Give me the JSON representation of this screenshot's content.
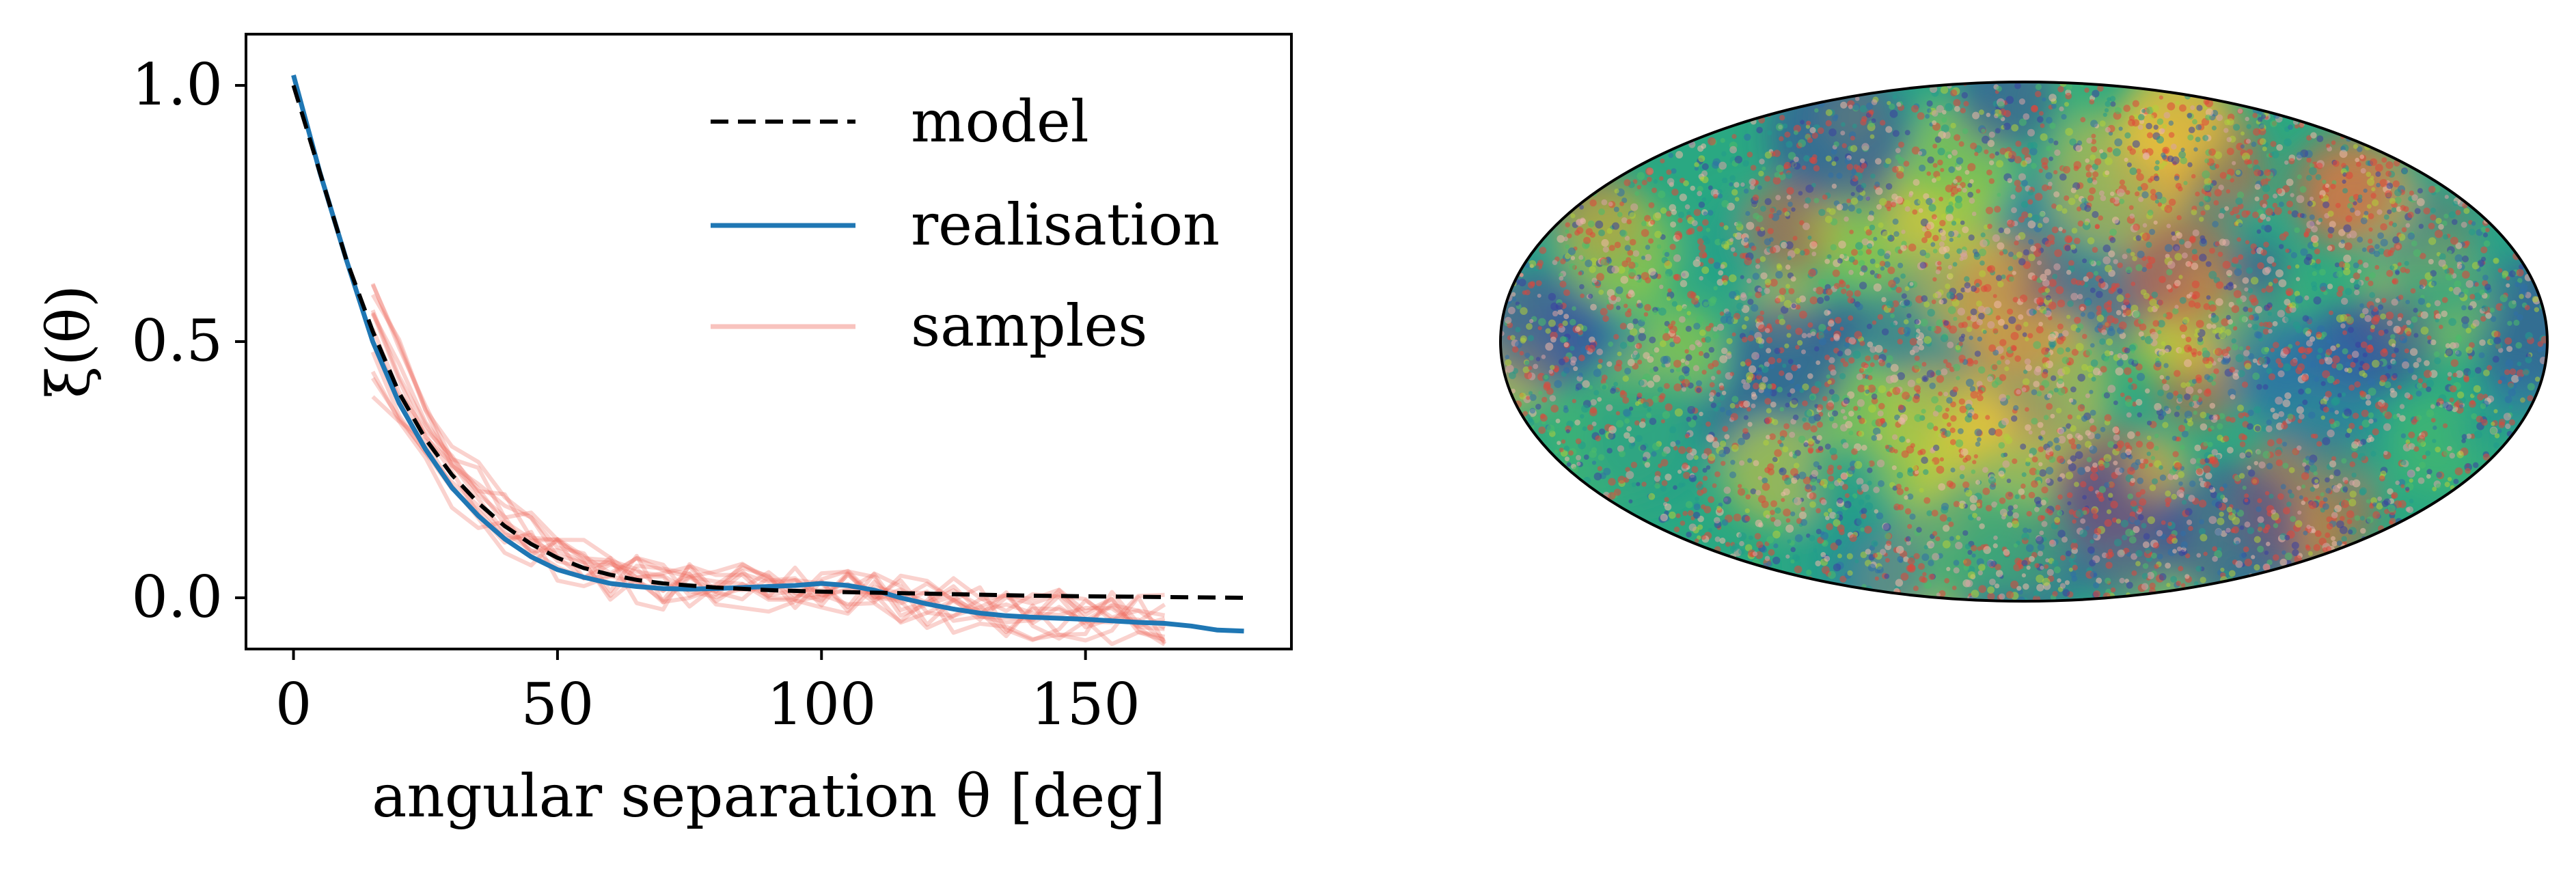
{
  "chart_data": [
    {
      "type": "line",
      "xlabel": "angular separation θ [deg]",
      "ylabel": "ξ(θ)",
      "xlim": [
        -9,
        189
      ],
      "ylim": [
        -0.1,
        1.1
      ],
      "xticks": [
        0,
        50,
        100,
        150
      ],
      "xtick_labels": [
        "0",
        "50",
        "100",
        "150"
      ],
      "yticks": [
        0.0,
        0.5,
        1.0
      ],
      "ytick_labels": [
        "0.0",
        "0.5",
        "1.0"
      ],
      "grid": false,
      "legend_position": "top-right",
      "series": [
        {
          "name": "model",
          "style": "dashed",
          "color": "#000000",
          "x": [
            0,
            5,
            10,
            15,
            20,
            25,
            30,
            35,
            40,
            45,
            50,
            55,
            60,
            65,
            70,
            80,
            90,
            100,
            110,
            120,
            130,
            140,
            150,
            160,
            170,
            180
          ],
          "y": [
            1.0,
            0.83,
            0.66,
            0.52,
            0.4,
            0.31,
            0.24,
            0.185,
            0.14,
            0.105,
            0.078,
            0.058,
            0.045,
            0.035,
            0.028,
            0.02,
            0.015,
            0.012,
            0.01,
            0.008,
            0.006,
            0.004,
            0.003,
            0.002,
            0.001,
            0.0
          ]
        },
        {
          "name": "realisation",
          "style": "solid",
          "color": "#1f77b4",
          "x": [
            0,
            5,
            10,
            15,
            20,
            25,
            30,
            35,
            40,
            45,
            50,
            55,
            60,
            65,
            70,
            75,
            80,
            85,
            90,
            95,
            100,
            105,
            110,
            115,
            120,
            125,
            130,
            135,
            140,
            145,
            150,
            155,
            160,
            165,
            170,
            175,
            180
          ],
          "y": [
            1.02,
            0.83,
            0.66,
            0.5,
            0.38,
            0.29,
            0.215,
            0.16,
            0.115,
            0.08,
            0.055,
            0.04,
            0.028,
            0.022,
            0.018,
            0.017,
            0.018,
            0.02,
            0.022,
            0.024,
            0.028,
            0.024,
            0.015,
            0.0,
            -0.012,
            -0.022,
            -0.03,
            -0.035,
            -0.038,
            -0.04,
            -0.042,
            -0.045,
            -0.048,
            -0.05,
            -0.055,
            -0.063,
            -0.065
          ]
        }
      ],
      "samples": {
        "name": "samples",
        "color": "#ee6a5c",
        "opacity": 0.3,
        "x": [
          15,
          20,
          25,
          30,
          35,
          40,
          45,
          50,
          55,
          60,
          65,
          70,
          75,
          80,
          85,
          90,
          95,
          100,
          105,
          110,
          115,
          120,
          125,
          130,
          135,
          140,
          145,
          150,
          155,
          160,
          165
        ],
        "mean": [
          0.52,
          0.41,
          0.32,
          0.245,
          0.19,
          0.145,
          0.11,
          0.08,
          0.06,
          0.045,
          0.035,
          0.028,
          0.022,
          0.02,
          0.02,
          0.02,
          0.022,
          0.022,
          0.018,
          0.01,
          0.0,
          -0.01,
          -0.018,
          -0.024,
          -0.028,
          -0.032,
          -0.034,
          -0.036,
          -0.038,
          -0.04,
          -0.042
        ],
        "offsets": [
          0.0,
          0.06,
          -0.05,
          0.09,
          -0.09,
          0.03,
          -0.03,
          0.12,
          -0.13,
          0.05,
          -0.07,
          0.1
        ],
        "noise": [
          0.045,
          0.055,
          0.04,
          0.05,
          0.06,
          0.035,
          0.05,
          0.045,
          0.055,
          0.04,
          0.05,
          0.06
        ]
      }
    },
    {
      "type": "heatmap",
      "projection": "mollweide",
      "colormap": [
        "#3b3fa0",
        "#2f6fa8",
        "#239b8c",
        "#4dbb6a",
        "#b3cf3a",
        "#e7c33a",
        "#e25a3c"
      ],
      "background_color": "#2aa882"
    }
  ]
}
